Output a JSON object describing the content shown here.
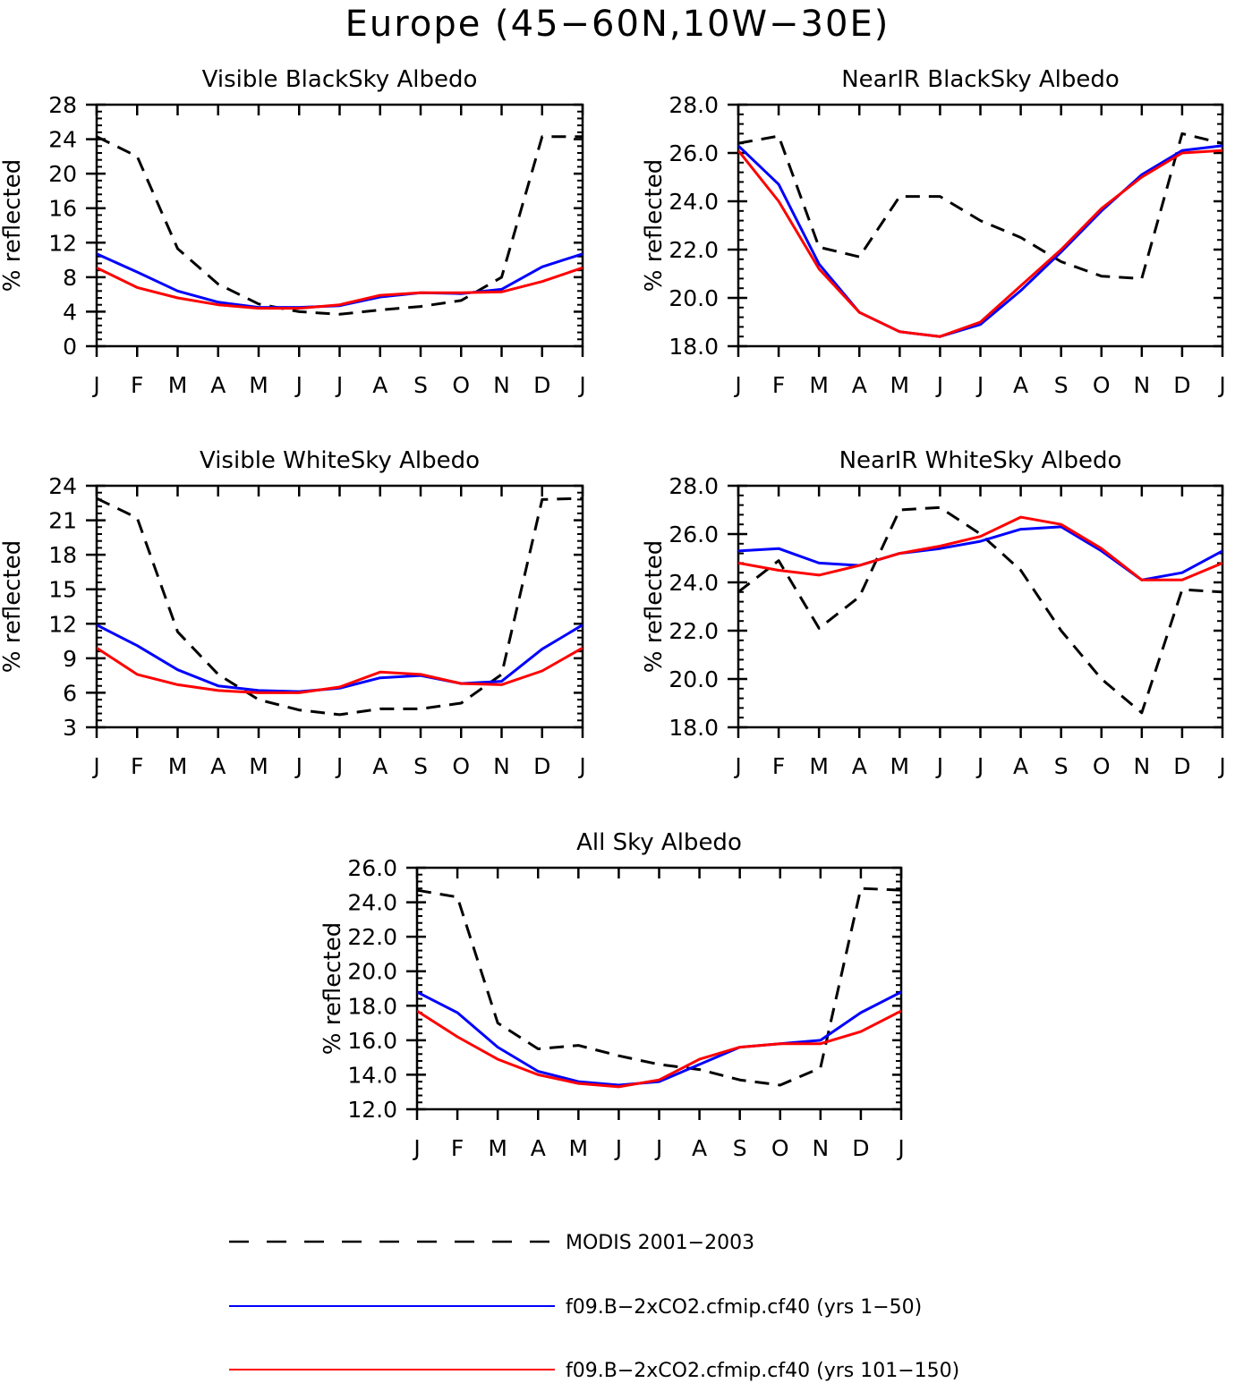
{
  "figure": {
    "title": "Europe (45−60N,10W−30E)",
    "month_labels": [
      "J",
      "F",
      "M",
      "A",
      "M",
      "J",
      "J",
      "A",
      "S",
      "O",
      "N",
      "D",
      "J"
    ]
  },
  "legend": [
    {
      "label": "MODIS 2001−2003",
      "color": "#000000",
      "style": "dashed"
    },
    {
      "label": "f09.B−2xCO2.cfmip.cf40 (yrs 1−50)",
      "color": "#0000ff",
      "style": "solid"
    },
    {
      "label": "f09.B−2xCO2.cfmip.cf40 (yrs 101−150)",
      "color": "#ff0000",
      "style": "solid"
    }
  ],
  "chart_data": [
    {
      "type": "line",
      "title": "Visible BlackSky Albedo",
      "ylabel": "% reflected",
      "ylim": [
        0,
        28
      ],
      "yticks": [
        0,
        4,
        8,
        12,
        16,
        20,
        24,
        28
      ],
      "ytick_labels": [
        "0",
        "4",
        "8",
        "12",
        "16",
        "20",
        "24",
        "28"
      ],
      "x": [
        "J",
        "F",
        "M",
        "A",
        "M",
        "J",
        "J",
        "A",
        "S",
        "O",
        "N",
        "D",
        "J"
      ],
      "series": [
        {
          "name": "MODIS 2001−2003",
          "color": "#000000",
          "dashed": true,
          "values": [
            24.3,
            22.0,
            11.3,
            7.2,
            4.9,
            4.0,
            3.7,
            4.2,
            4.6,
            5.3,
            8.0,
            24.3,
            24.3
          ]
        },
        {
          "name": "f09.B−2xCO2.cfmip.cf40 (yrs 1−50)",
          "color": "#0000ff",
          "dashed": false,
          "values": [
            10.7,
            8.6,
            6.4,
            5.1,
            4.5,
            4.5,
            4.7,
            5.7,
            6.2,
            6.1,
            6.6,
            9.2,
            10.7
          ]
        },
        {
          "name": "f09.B−2xCO2.cfmip.cf40 (yrs 101−150)",
          "color": "#ff0000",
          "dashed": false,
          "values": [
            9.1,
            6.8,
            5.6,
            4.8,
            4.4,
            4.4,
            4.8,
            5.9,
            6.2,
            6.2,
            6.3,
            7.5,
            9.1
          ]
        }
      ]
    },
    {
      "type": "line",
      "title": "NearIR BlackSky Albedo",
      "ylabel": "% reflected",
      "ylim": [
        18,
        28
      ],
      "yticks": [
        18,
        20,
        22,
        24,
        26,
        28
      ],
      "ytick_labels": [
        "18.0",
        "20.0",
        "22.0",
        "24.0",
        "26.0",
        "28.0"
      ],
      "x": [
        "J",
        "F",
        "M",
        "A",
        "M",
        "J",
        "J",
        "A",
        "S",
        "O",
        "N",
        "D",
        "J"
      ],
      "series": [
        {
          "name": "MODIS 2001−2003",
          "color": "#000000",
          "dashed": true,
          "values": [
            26.4,
            26.7,
            22.1,
            21.7,
            24.2,
            24.2,
            23.2,
            22.5,
            21.5,
            20.9,
            20.8,
            26.8,
            26.4
          ]
        },
        {
          "name": "f09.B−2xCO2.cfmip.cf40 (yrs 1−50)",
          "color": "#0000ff",
          "dashed": false,
          "values": [
            26.3,
            24.7,
            21.4,
            19.4,
            18.6,
            18.4,
            18.9,
            20.3,
            21.9,
            23.6,
            25.1,
            26.1,
            26.3
          ]
        },
        {
          "name": "f09.B−2xCO2.cfmip.cf40 (yrs 101−150)",
          "color": "#ff0000",
          "dashed": false,
          "values": [
            26.1,
            24.0,
            21.2,
            19.4,
            18.6,
            18.4,
            19.0,
            20.5,
            22.0,
            23.7,
            25.0,
            26.0,
            26.1
          ]
        }
      ]
    },
    {
      "type": "line",
      "title": "Visible WhiteSky Albedo",
      "ylabel": "% reflected",
      "ylim": [
        3,
        24
      ],
      "yticks": [
        3,
        6,
        9,
        12,
        15,
        18,
        21,
        24
      ],
      "ytick_labels": [
        "3",
        "6",
        "9",
        "12",
        "15",
        "18",
        "21",
        "24"
      ],
      "x": [
        "J",
        "F",
        "M",
        "A",
        "M",
        "J",
        "J",
        "A",
        "S",
        "O",
        "N",
        "D",
        "J"
      ],
      "series": [
        {
          "name": "MODIS 2001−2003",
          "color": "#000000",
          "dashed": true,
          "values": [
            22.9,
            21.2,
            11.3,
            7.6,
            5.4,
            4.5,
            4.1,
            4.6,
            4.6,
            5.1,
            7.6,
            22.8,
            22.9
          ]
        },
        {
          "name": "f09.B−2xCO2.cfmip.cf40 (yrs 1−50)",
          "color": "#0000ff",
          "dashed": false,
          "values": [
            11.9,
            10.1,
            8.0,
            6.6,
            6.2,
            6.1,
            6.4,
            7.3,
            7.5,
            6.8,
            7.0,
            9.8,
            11.9
          ]
        },
        {
          "name": "f09.B−2xCO2.cfmip.cf40 (yrs 101−150)",
          "color": "#ff0000",
          "dashed": false,
          "values": [
            9.9,
            7.6,
            6.7,
            6.2,
            6.0,
            6.0,
            6.5,
            7.8,
            7.6,
            6.8,
            6.7,
            7.9,
            9.9
          ]
        }
      ]
    },
    {
      "type": "line",
      "title": "NearIR WhiteSky Albedo",
      "ylabel": "% reflected",
      "ylim": [
        18,
        28
      ],
      "yticks": [
        18,
        20,
        22,
        24,
        26,
        28
      ],
      "ytick_labels": [
        "18.0",
        "20.0",
        "22.0",
        "24.0",
        "26.0",
        "28.0"
      ],
      "x": [
        "J",
        "F",
        "M",
        "A",
        "M",
        "J",
        "J",
        "A",
        "S",
        "O",
        "N",
        "D",
        "J"
      ],
      "series": [
        {
          "name": "MODIS 2001−2003",
          "color": "#000000",
          "dashed": true,
          "values": [
            23.6,
            24.9,
            22.1,
            23.4,
            27.0,
            27.1,
            26.0,
            24.5,
            22.0,
            20.0,
            18.6,
            23.7,
            23.6
          ]
        },
        {
          "name": "f09.B−2xCO2.cfmip.cf40 (yrs 1−50)",
          "color": "#0000ff",
          "dashed": false,
          "values": [
            25.3,
            25.4,
            24.8,
            24.7,
            25.2,
            25.4,
            25.7,
            26.2,
            26.3,
            25.3,
            24.1,
            24.4,
            25.3
          ]
        },
        {
          "name": "f09.B−2xCO2.cfmip.cf40 (yrs 101−150)",
          "color": "#ff0000",
          "dashed": false,
          "values": [
            24.8,
            24.5,
            24.3,
            24.7,
            25.2,
            25.5,
            25.9,
            26.7,
            26.4,
            25.4,
            24.1,
            24.1,
            24.8
          ]
        }
      ]
    },
    {
      "type": "line",
      "title": "All Sky Albedo",
      "ylabel": "% reflected",
      "ylim": [
        12,
        26
      ],
      "yticks": [
        12,
        14,
        16,
        18,
        20,
        22,
        24,
        26
      ],
      "ytick_labels": [
        "12.0",
        "14.0",
        "16.0",
        "18.0",
        "20.0",
        "22.0",
        "24.0",
        "26.0"
      ],
      "x": [
        "J",
        "F",
        "M",
        "A",
        "M",
        "J",
        "J",
        "A",
        "S",
        "O",
        "N",
        "D",
        "J"
      ],
      "series": [
        {
          "name": "MODIS 2001−2003",
          "color": "#000000",
          "dashed": true,
          "values": [
            24.7,
            24.3,
            17.0,
            15.5,
            15.7,
            15.1,
            14.6,
            14.3,
            13.7,
            13.4,
            14.4,
            24.8,
            24.7
          ]
        },
        {
          "name": "f09.B−2xCO2.cfmip.cf40 (yrs 1−50)",
          "color": "#0000ff",
          "dashed": false,
          "values": [
            18.8,
            17.6,
            15.6,
            14.2,
            13.6,
            13.4,
            13.6,
            14.6,
            15.6,
            15.8,
            16.0,
            17.6,
            18.8
          ]
        },
        {
          "name": "f09.B−2xCO2.cfmip.cf40 (yrs 101−150)",
          "color": "#ff0000",
          "dashed": false,
          "values": [
            17.7,
            16.2,
            14.9,
            14.0,
            13.5,
            13.3,
            13.7,
            14.9,
            15.6,
            15.8,
            15.8,
            16.5,
            17.7
          ]
        }
      ]
    }
  ]
}
